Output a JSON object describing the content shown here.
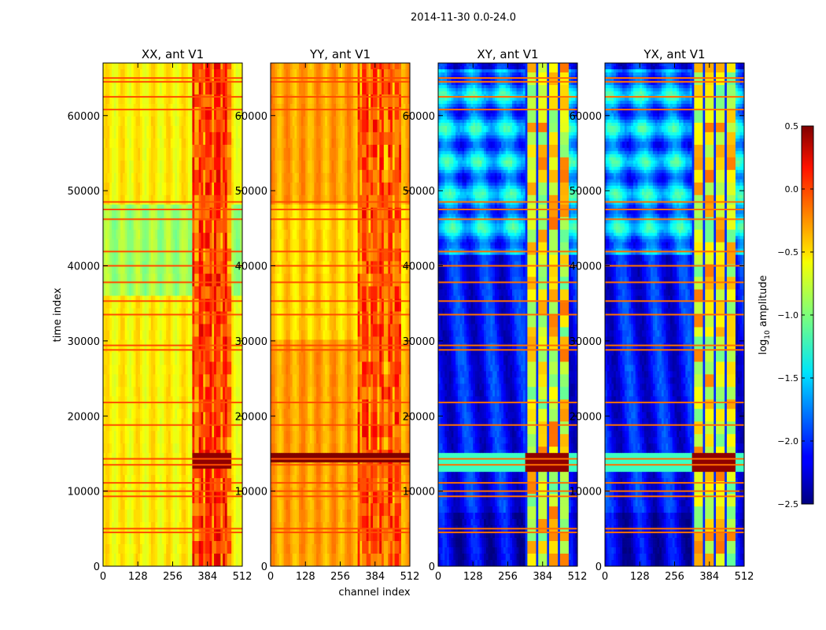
{
  "chart_data": {
    "type": "heatmap",
    "suptitle": "2014-11-30 0.0-24.0",
    "xlabel": "channel index",
    "ylabel": "time index",
    "xlim": [
      0,
      512
    ],
    "ylim": [
      0,
      67000
    ],
    "x_ticks": [
      {
        "v": 0,
        "label": "0"
      },
      {
        "v": 128,
        "label": "128"
      },
      {
        "v": 256,
        "label": "256"
      },
      {
        "v": 384,
        "label": "384"
      },
      {
        "v": 512,
        "label": "512"
      }
    ],
    "y_ticks": [
      {
        "v": 0,
        "label": "0"
      },
      {
        "v": 10000,
        "label": "10000"
      },
      {
        "v": 20000,
        "label": "20000"
      },
      {
        "v": 30000,
        "label": "30000"
      },
      {
        "v": 40000,
        "label": "40000"
      },
      {
        "v": 50000,
        "label": "50000"
      },
      {
        "v": 60000,
        "label": "60000"
      }
    ],
    "colorbar": {
      "label": "log10 amplitude",
      "label_base": "log",
      "label_sub": "10",
      "label_rest": " amplitude",
      "range": [
        -2.5,
        0.5
      ],
      "ticks": [
        {
          "v": 0.5,
          "label": "0.5"
        },
        {
          "v": 0.0,
          "label": "0.0"
        },
        {
          "v": -0.5,
          "label": "−0.5"
        },
        {
          "v": -1.0,
          "label": "−1.0"
        },
        {
          "v": -1.5,
          "label": "−1.5"
        },
        {
          "v": -2.0,
          "label": "−2.0"
        },
        {
          "v": -2.5,
          "label": "−2.5"
        }
      ]
    },
    "panels": [
      {
        "title": "XX, ant V1",
        "kind": "parallel",
        "base": -0.6,
        "band": [
          330,
          470
        ],
        "band_level": 0.15,
        "heavy_rows": [
          13000,
          15000
        ]
      },
      {
        "title": "YY, ant V1",
        "kind": "parallel",
        "base": -0.35,
        "band": [
          320,
          480
        ],
        "band_level": 0.1,
        "heavy_rows": [
          13800,
          15000
        ]
      },
      {
        "title": "XY, ant V1",
        "kind": "cross",
        "base": -2.1,
        "band": [
          320,
          480
        ],
        "band_level": -0.8,
        "heavy_rows": [
          12500,
          15000
        ]
      },
      {
        "title": "YX, ant V1",
        "kind": "cross",
        "base": -2.1,
        "band": [
          320,
          480
        ],
        "band_level": -0.8,
        "heavy_rows": [
          12500,
          15000
        ]
      }
    ],
    "flag_rows": [
      4500,
      5000,
      9300,
      10000,
      11100,
      13500,
      14300,
      18800,
      21800,
      28800,
      29400,
      33500,
      35300,
      37800,
      40000,
      41900,
      46200,
      47500,
      48500,
      60800,
      62500,
      64500,
      65000
    ],
    "flag_level": -0.2
  }
}
